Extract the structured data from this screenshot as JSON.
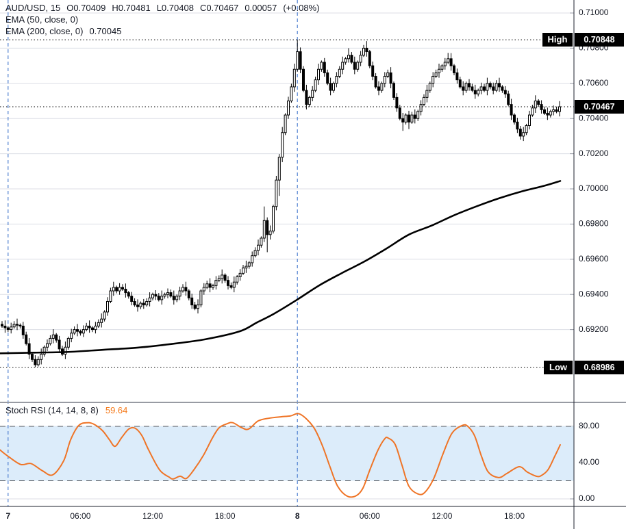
{
  "header": {
    "symbol_title": "AUD/USD, 15",
    "ohlc": {
      "open": "O0.70409",
      "high": "H0.70481",
      "low": "L0.70408",
      "close": "C0.70467",
      "change": "0.00057",
      "change_pct": "(+0.08%)"
    },
    "ema50_label": "EMA (50, close, 0)",
    "ema200_label": "EMA (200, close, 0)",
    "ema200_value": "0.70045"
  },
  "price_axis": {
    "high_badge": "0.70848",
    "last_badge": "0.70467",
    "low_badge": "0.68986"
  },
  "overlay_labels": {
    "high": "High",
    "low": "Low"
  },
  "stoch": {
    "title": "Stoch RSI (14, 14, 8, 8)",
    "value": "59.64"
  },
  "colors": {
    "background": "#ffffff",
    "text": "#131722",
    "grid": "#dcdee6",
    "candle": "#000000",
    "ema200": "#000000",
    "day_separator": "#4e7fd0",
    "stoch_line": "#ef7426",
    "stoch_value": "#f57b1c",
    "band_fill": "#dcecfa",
    "band_border": "#53565c",
    "badge_bg": "#000000",
    "badge_text": "#ffffff",
    "axis_line": "#1b1f2b",
    "pane_separator": "#989ba3"
  },
  "chart_data": {
    "type": "candlestick_with_indicators",
    "symbol": "AUD/USD",
    "interval_minutes": 15,
    "price_pane": {
      "type": "candlestick",
      "first_open": 0.6923,
      "closes": [
        0.6922,
        0.6921,
        0.692,
        0.69215,
        0.6923,
        0.69225,
        0.6922,
        0.6917,
        0.6912,
        0.6906,
        0.6903,
        0.69,
        0.6903,
        0.6906,
        0.691,
        0.6912,
        0.6915,
        0.6917,
        0.6914,
        0.6909,
        0.6906,
        0.691,
        0.6915,
        0.6918,
        0.692,
        0.6919,
        0.6918,
        0.692,
        0.6922,
        0.6921,
        0.692,
        0.6922,
        0.6924,
        0.6926,
        0.693,
        0.6936,
        0.6942,
        0.6944,
        0.6942,
        0.6944,
        0.6943,
        0.6941,
        0.6939,
        0.6936,
        0.6934,
        0.6933,
        0.6935,
        0.6934,
        0.6936,
        0.6938,
        0.694,
        0.6939,
        0.6937,
        0.6939,
        0.694,
        0.6941,
        0.6939,
        0.6937,
        0.6939,
        0.6942,
        0.6944,
        0.6942,
        0.6938,
        0.6934,
        0.6932,
        0.6934,
        0.6942,
        0.6944,
        0.6946,
        0.6944,
        0.6945,
        0.6948,
        0.6949,
        0.6951,
        0.6948,
        0.6945,
        0.6944,
        0.6947,
        0.695,
        0.6952,
        0.6955,
        0.6956,
        0.6958,
        0.6962,
        0.6965,
        0.6968,
        0.6972,
        0.6982,
        0.6974,
        0.6976,
        0.699,
        0.7005,
        0.7018,
        0.7032,
        0.7042,
        0.705,
        0.7058,
        0.7068,
        0.7078,
        0.7068,
        0.7056,
        0.7048,
        0.7052,
        0.7056,
        0.7062,
        0.7068,
        0.7072,
        0.7066,
        0.706,
        0.7056,
        0.706,
        0.7064,
        0.7068,
        0.7072,
        0.7074,
        0.7076,
        0.7072,
        0.7068,
        0.7072,
        0.7076,
        0.708,
        0.7078,
        0.707,
        0.7064,
        0.7058,
        0.7056,
        0.706,
        0.7064,
        0.7066,
        0.706,
        0.7052,
        0.7046,
        0.704,
        0.7038,
        0.7042,
        0.7038,
        0.7042,
        0.704,
        0.7044,
        0.7048,
        0.7052,
        0.7056,
        0.706,
        0.7064,
        0.7066,
        0.7068,
        0.707,
        0.7072,
        0.7074,
        0.707,
        0.7066,
        0.7062,
        0.7058,
        0.7056,
        0.706,
        0.7058,
        0.7056,
        0.7054,
        0.7056,
        0.7058,
        0.7056,
        0.706,
        0.7058,
        0.7056,
        0.706,
        0.7058,
        0.7056,
        0.7054,
        0.7048,
        0.7042,
        0.7038,
        0.7034,
        0.703,
        0.7032,
        0.7036,
        0.7042,
        0.7046,
        0.705,
        0.7048,
        0.7045,
        0.7043,
        0.7042,
        0.7044,
        0.7045,
        0.7044,
        0.70467
      ],
      "wick_overrides": {
        "11": {
          "low": 0.68986
        },
        "87": {
          "high": 0.699
        },
        "88": {
          "low": 0.6964
        },
        "92": {
          "low": 0.6996
        },
        "98": {
          "high": 0.70848
        },
        "115": {
          "high": 0.708
        },
        "121": {
          "high": 0.7084
        },
        "133": {
          "low": 0.7033
        },
        "135": {
          "low": 0.7034
        },
        "148": {
          "high": 0.70773
        },
        "172": {
          "low": 0.7028
        }
      },
      "day_separator_indices": [
        2,
        98
      ],
      "key_levels": {
        "high": 0.70848,
        "low": 0.68986,
        "last": 0.70467
      },
      "y_ticks": [
        0.71,
        0.708,
        0.706,
        0.704,
        0.702,
        0.7,
        0.698,
        0.696,
        0.694,
        0.692
      ],
      "ema50_visible": false,
      "ema200_points_x_price": [
        [
          0,
          0.69065
        ],
        [
          50,
          0.69069
        ],
        [
          100,
          0.69073
        ],
        [
          150,
          0.69085
        ],
        [
          200,
          0.69097
        ],
        [
          250,
          0.69118
        ],
        [
          300,
          0.69145
        ],
        [
          350,
          0.6919
        ],
        [
          375,
          0.6924
        ],
        [
          400,
          0.6929
        ],
        [
          433,
          0.69368
        ],
        [
          466,
          0.69451
        ],
        [
          499,
          0.69521
        ],
        [
          532,
          0.69587
        ],
        [
          564,
          0.6966
        ],
        [
          597,
          0.6974
        ],
        [
          630,
          0.69791
        ],
        [
          663,
          0.6985
        ],
        [
          696,
          0.69901
        ],
        [
          729,
          0.69947
        ],
        [
          762,
          0.69986
        ],
        [
          795,
          0.70018
        ],
        [
          818,
          0.70045
        ]
      ]
    },
    "time_ticks": [
      {
        "label": "7",
        "index": 2,
        "bold": true
      },
      {
        "label": "06:00",
        "index": 26,
        "bold": false
      },
      {
        "label": "12:00",
        "index": 50,
        "bold": false
      },
      {
        "label": "18:00",
        "index": 74,
        "bold": false
      },
      {
        "label": "8",
        "index": 98,
        "bold": true
      },
      {
        "label": "06:00",
        "index": 122,
        "bold": false
      },
      {
        "label": "12:00",
        "index": 146,
        "bold": false
      },
      {
        "label": "18:00",
        "index": 170,
        "bold": false
      }
    ],
    "stoch_pane": {
      "type": "line",
      "name": "Stoch RSI (14, 14, 8, 8)",
      "last_value": 59.64,
      "upper_band": 80,
      "lower_band": 20,
      "y_ticks": [
        80,
        40,
        0
      ],
      "points_x_value": [
        [
          0,
          54
        ],
        [
          10,
          48
        ],
        [
          30,
          38
        ],
        [
          45,
          39
        ],
        [
          62,
          31
        ],
        [
          77,
          26.5
        ],
        [
          93,
          42
        ],
        [
          103,
          65
        ],
        [
          115,
          81
        ],
        [
          128,
          84
        ],
        [
          138,
          82
        ],
        [
          150,
          75
        ],
        [
          160,
          65
        ],
        [
          168,
          58
        ],
        [
          178,
          68
        ],
        [
          188,
          77
        ],
        [
          197,
          78
        ],
        [
          207,
          70
        ],
        [
          217,
          54
        ],
        [
          233,
          32
        ],
        [
          247,
          24
        ],
        [
          253,
          22
        ],
        [
          263,
          25
        ],
        [
          272,
          22.5
        ],
        [
          283,
          32
        ],
        [
          297,
          48
        ],
        [
          310,
          67
        ],
        [
          320,
          78.5
        ],
        [
          332,
          83
        ],
        [
          340,
          84
        ],
        [
          353,
          78.5
        ],
        [
          363,
          77
        ],
        [
          377,
          86
        ],
        [
          393,
          89
        ],
        [
          410,
          90.5
        ],
        [
          424,
          91.5
        ],
        [
          438,
          93.5
        ],
        [
          457,
          80
        ],
        [
          470,
          60
        ],
        [
          482,
          35
        ],
        [
          493,
          14
        ],
        [
          507,
          3
        ],
        [
          520,
          3.5
        ],
        [
          530,
          12
        ],
        [
          540,
          32
        ],
        [
          552,
          54
        ],
        [
          562,
          66.5
        ],
        [
          567,
          67
        ],
        [
          577,
          60
        ],
        [
          587,
          37
        ],
        [
          597,
          14
        ],
        [
          610,
          5.5
        ],
        [
          620,
          7
        ],
        [
          633,
          22
        ],
        [
          647,
          50
        ],
        [
          660,
          72.5
        ],
        [
          675,
          81
        ],
        [
          683,
          80
        ],
        [
          693,
          69.5
        ],
        [
          703,
          47
        ],
        [
          713,
          29.5
        ],
        [
          728,
          23.5
        ],
        [
          740,
          28
        ],
        [
          758,
          35.5
        ],
        [
          770,
          29.5
        ],
        [
          783,
          25
        ],
        [
          790,
          25.6
        ],
        [
          800,
          32
        ],
        [
          810,
          47
        ],
        [
          818,
          59.64
        ]
      ]
    }
  }
}
